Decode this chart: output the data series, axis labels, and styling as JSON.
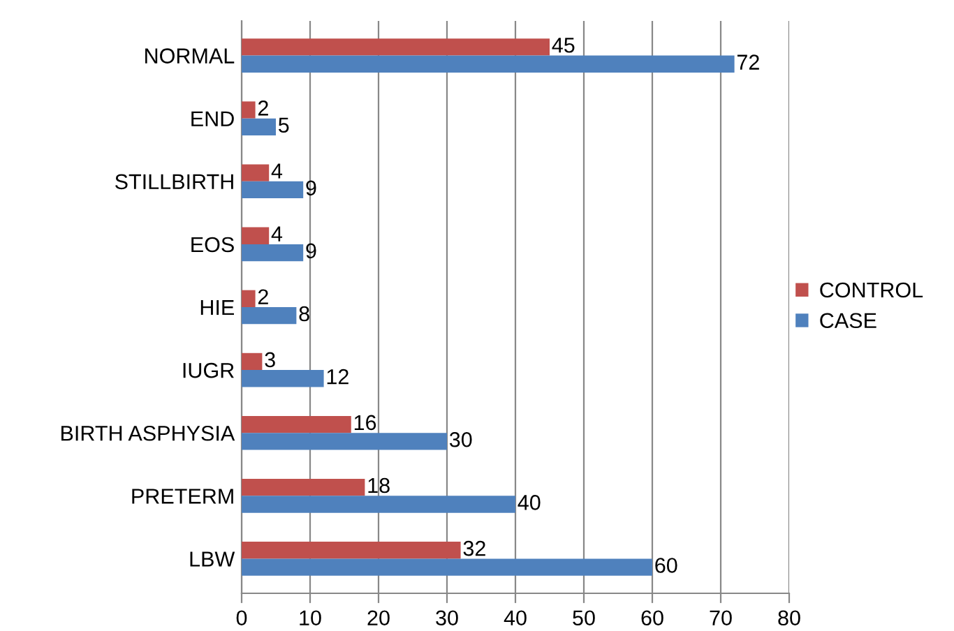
{
  "chart_data": {
    "type": "bar",
    "orientation": "horizontal",
    "categories": [
      "NORMAL",
      "END",
      "STILLBIRTH",
      "EOS",
      "HIE",
      "IUGR",
      "BIRTH ASPHYSIA",
      "PRETERM",
      "LBW"
    ],
    "series": [
      {
        "name": "CONTROL",
        "color": "#c0504d",
        "values": [
          45,
          2,
          4,
          4,
          2,
          3,
          16,
          18,
          32
        ]
      },
      {
        "name": "CASE",
        "color": "#4f81bd",
        "values": [
          72,
          5,
          9,
          9,
          8,
          12,
          30,
          40,
          60
        ]
      }
    ],
    "xlim": [
      0,
      80
    ],
    "xticks": [
      0,
      10,
      20,
      30,
      40,
      50,
      60,
      70,
      80
    ],
    "grid": "x",
    "legend": "right",
    "data_labels": true
  }
}
